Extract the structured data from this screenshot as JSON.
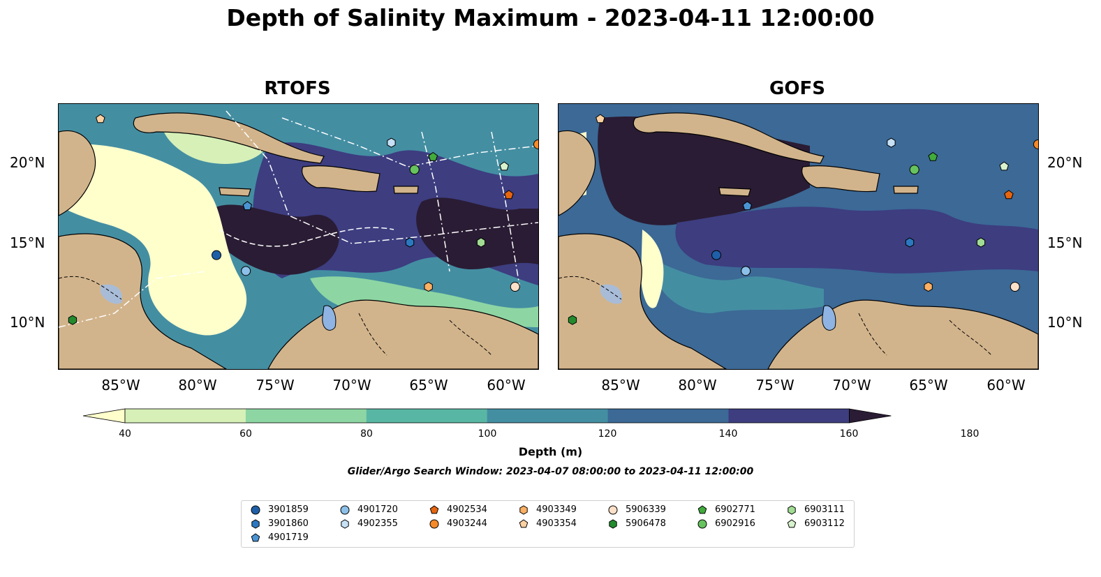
{
  "title": "Depth of Salinity Maximum - 2023-04-11 12:00:00",
  "panels": [
    {
      "title": "RTOFS"
    },
    {
      "title": "GOFS"
    }
  ],
  "lat_labels": [
    "20°N",
    "15°N",
    "10°N"
  ],
  "lon_labels": [
    "85°W",
    "80°W",
    "75°W",
    "70°W",
    "65°W",
    "60°W"
  ],
  "colorbar": {
    "label": "Depth (m)",
    "ticks": [
      "40",
      "60",
      "80",
      "100",
      "120",
      "140",
      "160",
      "180"
    ],
    "colors": [
      "#ffffcc",
      "#d6f0b8",
      "#8dd6a3",
      "#58b7a4",
      "#448ea2",
      "#3c6996",
      "#3d3d80",
      "#2a1c34"
    ]
  },
  "search_window": "Glider/Argo Search Window: 2023-04-07 08:00:00 to 2023-04-11 12:00:00",
  "legend": [
    {
      "id": "3901859",
      "shape": "circle",
      "color": "#1f5fa8"
    },
    {
      "id": "3901860",
      "shape": "hexagon",
      "color": "#2b78c0"
    },
    {
      "id": "4901719",
      "shape": "pentagon",
      "color": "#4a94d4"
    },
    {
      "id": "4901720",
      "shape": "circle",
      "color": "#8cc0e8"
    },
    {
      "id": "4902355",
      "shape": "hexagon",
      "color": "#c6e0f5"
    },
    {
      "id": "4902534",
      "shape": "pentagon",
      "color": "#e6650f"
    },
    {
      "id": "4903244",
      "shape": "circle",
      "color": "#f58a2a"
    },
    {
      "id": "4903349",
      "shape": "hexagon",
      "color": "#fbb063"
    },
    {
      "id": "4903354",
      "shape": "pentagon",
      "color": "#fdd0a2"
    },
    {
      "id": "5906339",
      "shape": "circle",
      "color": "#fde0c8"
    },
    {
      "id": "5906478",
      "shape": "hexagon",
      "color": "#238b2e"
    },
    {
      "id": "6902771",
      "shape": "pentagon",
      "color": "#41ab3c"
    },
    {
      "id": "6902916",
      "shape": "circle",
      "color": "#67c35e"
    },
    {
      "id": "6903111",
      "shape": "hexagon",
      "color": "#a1dc93"
    },
    {
      "id": "6903112",
      "shape": "pentagon",
      "color": "#d7f2cd"
    }
  ],
  "floats": [
    {
      "id": "3901859",
      "lon": -78.8,
      "lat": 14.2
    },
    {
      "id": "4901720",
      "lon": -76.9,
      "lat": 13.2
    },
    {
      "id": "4901719",
      "lon": -76.8,
      "lat": 17.3
    },
    {
      "id": "3901860",
      "lon": -66.3,
      "lat": 15.0
    },
    {
      "id": "4902355",
      "lon": -67.5,
      "lat": 21.3
    },
    {
      "id": "6902916",
      "lon": -66.0,
      "lat": 19.6
    },
    {
      "id": "6902771",
      "lon": -64.8,
      "lat": 20.4
    },
    {
      "id": "6903112",
      "lon": -60.2,
      "lat": 19.8
    },
    {
      "id": "4902534",
      "lon": -59.9,
      "lat": 18.0
    },
    {
      "id": "4903244",
      "lon": -58.0,
      "lat": 21.2
    },
    {
      "id": "6903111",
      "lon": -61.7,
      "lat": 15.0
    },
    {
      "id": "4903349",
      "lon": -65.1,
      "lat": 12.2
    },
    {
      "id": "5906339",
      "lon": -59.5,
      "lat": 12.2
    },
    {
      "id": "4903354",
      "lon": -86.3,
      "lat": 22.8
    },
    {
      "id": "5906478",
      "lon": -88.1,
      "lat": 10.1
    }
  ]
}
